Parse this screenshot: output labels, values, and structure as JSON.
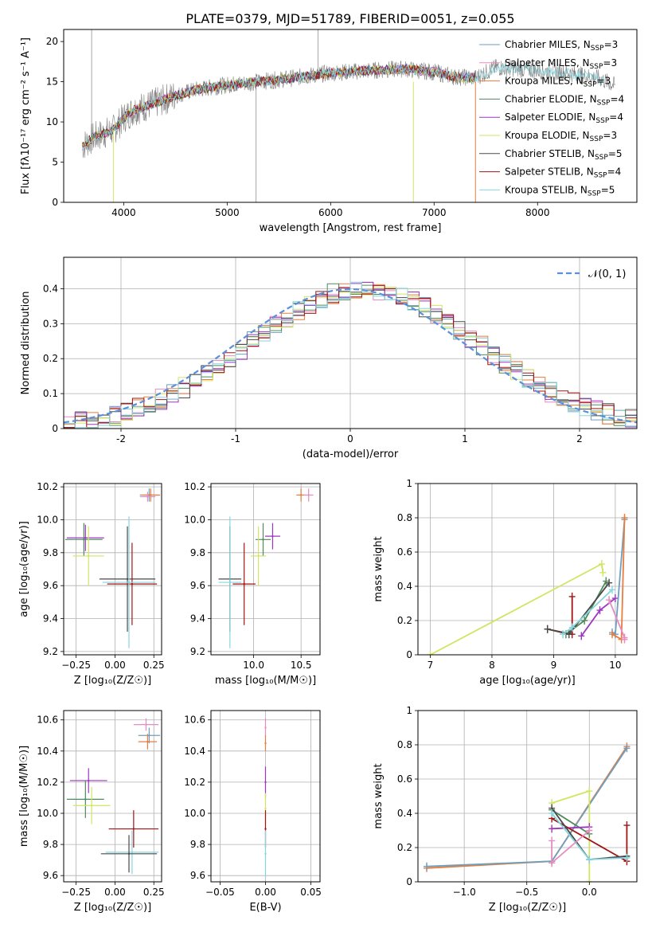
{
  "figure": {
    "title": "PLATE=0379, MJD=51789, FIBERID=0051, z=0.055"
  },
  "models": [
    {
      "name": "Chabrier MILES",
      "nssp": "3",
      "color": "#6e9fbf"
    },
    {
      "name": "Salpeter MILES",
      "nssp": "3",
      "color": "#e58cc0"
    },
    {
      "name": "Kroupa MILES",
      "nssp": "3",
      "color": "#e87d3e"
    },
    {
      "name": "Chabrier ELODIE",
      "nssp": "4",
      "color": "#4f8a5b"
    },
    {
      "name": "Salpeter ELODIE",
      "nssp": "4",
      "color": "#9b36c0"
    },
    {
      "name": "Kroupa ELODIE",
      "nssp": "3",
      "color": "#d2e562"
    },
    {
      "name": "Chabrier STELIB",
      "nssp": "5",
      "color": "#4a4a4a"
    },
    {
      "name": "Salpeter STELIB",
      "nssp": "4",
      "color": "#a01515"
    },
    {
      "name": "Kroupa STELIB",
      "nssp": "5",
      "color": "#86d6dd"
    }
  ],
  "chart_data": [
    {
      "id": "spectrum",
      "type": "line",
      "title": "PLATE=0379, MJD=51789, FIBERID=0051, z=0.055",
      "xlabel": "wavelength [Angstrom, rest frame]",
      "ylabel": "Flux [fλ10⁻¹⁷ erg cm⁻² s⁻¹ A⁻¹]",
      "xlim": [
        3420,
        8960
      ],
      "ylim": [
        0,
        21.5
      ],
      "xticks": [
        4000,
        5000,
        6000,
        7000,
        8000
      ],
      "yticks": [
        0,
        5,
        10,
        15,
        20
      ],
      "legend": "top-right",
      "data_color": "#808080",
      "continuum": [
        [
          3600,
          7.0
        ],
        [
          3700,
          8.0
        ],
        [
          3800,
          8.5
        ],
        [
          3900,
          9.0
        ],
        [
          4000,
          10.5
        ],
        [
          4100,
          11.5
        ],
        [
          4300,
          12.3
        ],
        [
          4500,
          13.3
        ],
        [
          4700,
          14.0
        ],
        [
          5000,
          14.6
        ],
        [
          5300,
          15.0
        ],
        [
          5600,
          15.4
        ],
        [
          6000,
          16.1
        ],
        [
          6400,
          16.4
        ],
        [
          6700,
          16.6
        ],
        [
          7000,
          16.2
        ],
        [
          7200,
          15.6
        ],
        [
          7400,
          15.5
        ],
        [
          7600,
          16.8
        ],
        [
          7800,
          16.6
        ],
        [
          8000,
          16.4
        ],
        [
          8300,
          16.1
        ],
        [
          8600,
          15.4
        ],
        [
          8750,
          14.5
        ]
      ],
      "drops": [
        [
          5875,
          13.8
        ],
        [
          7200,
          13.0
        ],
        [
          7400,
          0.0
        ],
        [
          6800,
          0.0
        ],
        [
          3900,
          0.0
        ],
        [
          4300,
          11.0
        ]
      ]
    },
    {
      "id": "residuals",
      "type": "histogram",
      "xlabel": "(data-model)/error",
      "ylabel": "Normed distribution",
      "xlim": [
        -2.5,
        2.5
      ],
      "ylim": [
        0,
        0.49
      ],
      "xticks": [
        -2,
        -1,
        0,
        1,
        2
      ],
      "yticks": [
        0.0,
        0.1,
        0.2,
        0.3,
        0.4
      ],
      "grid": true,
      "legend": "top-right",
      "legend_label": "𝒩(0, 1)",
      "gaussian_color": "#5b8fd9",
      "bin_width": 0.1
    },
    {
      "id": "z-age",
      "type": "scatter",
      "xlabel": "Z [log₁₀(Z/Z☉)]",
      "ylabel": "age  [log₁₀(age/yr)]",
      "xlim": [
        -0.33,
        0.3
      ],
      "ylim": [
        9.18,
        10.22
      ],
      "xticks": [
        -0.25,
        0.0,
        0.25
      ],
      "ytick_labels": [
        "9.2",
        "9.4",
        "9.6",
        "9.8",
        "10.0",
        "10.2"
      ],
      "xtick_labels": [
        "−0.25",
        "0.00",
        "0.25"
      ],
      "grid": true,
      "points": [
        {
          "x": 0.22,
          "y": 10.15,
          "xerr": 0.06,
          "yerr": 0.04,
          "m": 0
        },
        {
          "x": 0.23,
          "y": 10.15,
          "xerr": 0.06,
          "yerr": 0.04,
          "m": 2
        },
        {
          "x": 0.21,
          "y": 10.14,
          "xerr": 0.05,
          "yerr": 0.03,
          "m": 1
        },
        {
          "x": -0.19,
          "y": 9.89,
          "xerr": 0.12,
          "yerr": 0.08,
          "m": 4
        },
        {
          "x": -0.2,
          "y": 9.88,
          "xerr": 0.12,
          "yerr": 0.1,
          "m": 3
        },
        {
          "x": -0.17,
          "y": 9.78,
          "xerr": 0.1,
          "yerr": 0.18,
          "m": 5
        },
        {
          "x": 0.08,
          "y": 9.64,
          "xerr": 0.18,
          "yerr": 0.32,
          "m": 6
        },
        {
          "x": 0.11,
          "y": 9.61,
          "xerr": 0.16,
          "yerr": 0.25,
          "m": 7
        },
        {
          "x": 0.09,
          "y": 9.62,
          "xerr": 0.17,
          "yerr": 0.4,
          "m": 8
        }
      ]
    },
    {
      "id": "mass-age",
      "type": "scatter",
      "xlabel": "mass [log₁₀(M/M☉)]",
      "ylabel": "",
      "xlim": [
        9.55,
        10.7
      ],
      "ylim": [
        9.18,
        10.22
      ],
      "xticks": [
        10.0,
        10.5
      ],
      "xtick_labels": [
        "10.0",
        "10.5"
      ],
      "ytick_labels": [
        "9.2",
        "9.4",
        "9.6",
        "9.8",
        "10.0",
        "10.2"
      ],
      "grid": true,
      "points": [
        {
          "x": 10.5,
          "y": 10.15,
          "xerr": 0.05,
          "yerr": 0.04,
          "m": 2
        },
        {
          "x": 10.58,
          "y": 10.15,
          "xerr": 0.05,
          "yerr": 0.04,
          "m": 1
        },
        {
          "x": 10.2,
          "y": 9.9,
          "xerr": 0.08,
          "yerr": 0.08,
          "m": 4
        },
        {
          "x": 10.1,
          "y": 9.88,
          "xerr": 0.08,
          "yerr": 0.1,
          "m": 3
        },
        {
          "x": 10.05,
          "y": 9.78,
          "xerr": 0.08,
          "yerr": 0.18,
          "m": 5
        },
        {
          "x": 9.75,
          "y": 9.64,
          "xerr": 0.12,
          "yerr": 0.32,
          "m": 6
        },
        {
          "x": 9.9,
          "y": 9.61,
          "xerr": 0.12,
          "yerr": 0.25,
          "m": 7
        },
        {
          "x": 9.75,
          "y": 9.62,
          "xerr": 0.12,
          "yerr": 0.4,
          "m": 8
        }
      ]
    },
    {
      "id": "age-weight",
      "type": "line",
      "xlabel": "age  [log₁₀(age/yr)]",
      "ylabel": "mass weight",
      "xlim": [
        6.8,
        10.35
      ],
      "ylim": [
        0,
        1.0
      ],
      "xticks": [
        7,
        8,
        9,
        10
      ],
      "yticks": [
        0.0,
        0.2,
        0.4,
        0.6,
        0.8,
        1.0
      ],
      "grid": true,
      "series": [
        {
          "m": 5,
          "x": [
            7.0,
            9.78,
            9.8
          ],
          "y": [
            0.0,
            0.53,
            0.48
          ]
        },
        {
          "m": 7,
          "x": [
            8.9,
            9.3,
            9.3
          ],
          "y": [
            0.15,
            0.12,
            0.34
          ]
        },
        {
          "m": 3,
          "x": [
            9.2,
            9.5,
            9.85
          ],
          "y": [
            0.12,
            0.2,
            0.43
          ]
        },
        {
          "m": 6,
          "x": [
            8.9,
            9.25,
            9.9
          ],
          "y": [
            0.15,
            0.12,
            0.42
          ]
        },
        {
          "m": 8,
          "x": [
            9.15,
            9.3,
            9.95
          ],
          "y": [
            0.12,
            0.16,
            0.38
          ]
        },
        {
          "m": 4,
          "x": [
            9.45,
            9.75,
            10.0
          ],
          "y": [
            0.11,
            0.26,
            0.33
          ]
        },
        {
          "m": 0,
          "x": [
            9.95,
            10.0,
            10.15
          ],
          "y": [
            0.13,
            0.12,
            0.79
          ]
        },
        {
          "m": 2,
          "x": [
            9.95,
            10.1,
            10.15
          ],
          "y": [
            0.12,
            0.09,
            0.8
          ]
        },
        {
          "m": 1,
          "x": [
            9.9,
            10.15,
            10.15
          ],
          "y": [
            0.32,
            0.1,
            0.09
          ]
        }
      ]
    },
    {
      "id": "z-mass",
      "type": "scatter",
      "xlabel": "Z [log₁₀(Z/Z☉)]",
      "ylabel": "mass [log₁₀(M/M☉)]",
      "xlim": [
        -0.33,
        0.3
      ],
      "ylim": [
        9.56,
        10.66
      ],
      "xtick_labels": [
        "−0.25",
        "0.00",
        "0.25"
      ],
      "xticks": [
        -0.25,
        0.0,
        0.25
      ],
      "ytick_labels": [
        "9.6",
        "9.8",
        "10.0",
        "10.2",
        "10.4",
        "10.6"
      ],
      "grid": true,
      "points": [
        {
          "x": 0.2,
          "y": 10.57,
          "xerr": 0.08,
          "yerr": 0.04,
          "m": 1
        },
        {
          "x": 0.22,
          "y": 10.5,
          "xerr": 0.07,
          "yerr": 0.05,
          "m": 0
        },
        {
          "x": 0.21,
          "y": 10.46,
          "xerr": 0.06,
          "yerr": 0.05,
          "m": 2
        },
        {
          "x": -0.17,
          "y": 10.21,
          "xerr": 0.12,
          "yerr": 0.08,
          "m": 4
        },
        {
          "x": -0.19,
          "y": 10.09,
          "xerr": 0.12,
          "yerr": 0.12,
          "m": 3
        },
        {
          "x": -0.15,
          "y": 10.05,
          "xerr": 0.12,
          "yerr": 0.12,
          "m": 5
        },
        {
          "x": 0.12,
          "y": 9.9,
          "xerr": 0.16,
          "yerr": 0.12,
          "m": 7
        },
        {
          "x": 0.11,
          "y": 9.75,
          "xerr": 0.17,
          "yerr": 0.14,
          "m": 8
        },
        {
          "x": 0.09,
          "y": 9.74,
          "xerr": 0.18,
          "yerr": 0.12,
          "m": 6
        }
      ]
    },
    {
      "id": "ebv-mass",
      "type": "scatter",
      "xlabel": "E(B-V)",
      "ylabel": "",
      "xlim": [
        -0.06,
        0.06
      ],
      "ylim": [
        9.56,
        10.66
      ],
      "xticks": [
        -0.05,
        0.0,
        0.05
      ],
      "xtick_labels": [
        "−0.05",
        "0.00",
        "0.05"
      ],
      "ytick_labels": [
        "9.6",
        "9.8",
        "10.0",
        "10.2",
        "10.4",
        "10.6"
      ],
      "grid": true,
      "points": [
        {
          "x": 0.0,
          "y": 10.55,
          "xerr": 0,
          "yerr": 0.06,
          "m": 1
        },
        {
          "x": 0.0,
          "y": 10.45,
          "xerr": 0,
          "yerr": 0.05,
          "m": 2
        },
        {
          "x": 0.0,
          "y": 10.2,
          "xerr": 0,
          "yerr": 0.1,
          "m": 4
        },
        {
          "x": 0.0,
          "y": 10.03,
          "xerr": 0,
          "yerr": 0.1,
          "m": 5
        },
        {
          "x": 0.0,
          "y": 9.9,
          "xerr": 0,
          "yerr": 0.12,
          "m": 7
        },
        {
          "x": 0.0,
          "y": 9.74,
          "xerr": 0,
          "yerr": 0.15,
          "m": 8
        }
      ]
    },
    {
      "id": "z-weight",
      "type": "line",
      "xlabel": "Z [log₁₀(Z/Z☉)]",
      "ylabel": "mass weight",
      "xlim": [
        -1.37,
        0.38
      ],
      "ylim": [
        0,
        1.0
      ],
      "xticks": [
        -1.0,
        -0.5,
        0.0
      ],
      "xtick_labels": [
        "−1.0",
        "−0.5",
        "0.0"
      ],
      "yticks": [
        0.0,
        0.2,
        0.4,
        0.6,
        0.8,
        1.0
      ],
      "grid": true,
      "series": [
        {
          "m": 2,
          "x": [
            -1.3,
            -0.3,
            0.3
          ],
          "y": [
            0.08,
            0.12,
            0.79
          ]
        },
        {
          "m": 0,
          "x": [
            -1.3,
            -0.3,
            0.3
          ],
          "y": [
            0.09,
            0.12,
            0.78
          ]
        },
        {
          "m": 5,
          "x": [
            -0.3,
            0.0,
            0.0
          ],
          "y": [
            0.46,
            0.53,
            0.0
          ]
        },
        {
          "m": 3,
          "x": [
            -0.3,
            0.0
          ],
          "y": [
            0.42,
            0.28
          ]
        },
        {
          "m": 4,
          "x": [
            -0.3,
            0.0
          ],
          "y": [
            0.31,
            0.32
          ]
        },
        {
          "m": 7,
          "x": [
            -0.3,
            0.3,
            0.3
          ],
          "y": [
            0.37,
            0.12,
            0.33
          ]
        },
        {
          "m": 6,
          "x": [
            -0.3,
            0.0,
            0.3
          ],
          "y": [
            0.43,
            0.13,
            0.15
          ]
        },
        {
          "m": 8,
          "x": [
            -0.3,
            0.0,
            0.3
          ],
          "y": [
            0.4,
            0.13,
            0.14
          ]
        },
        {
          "m": 1,
          "x": [
            -0.3,
            -0.3,
            0.0
          ],
          "y": [
            0.24,
            0.11,
            0.3
          ]
        }
      ]
    }
  ]
}
